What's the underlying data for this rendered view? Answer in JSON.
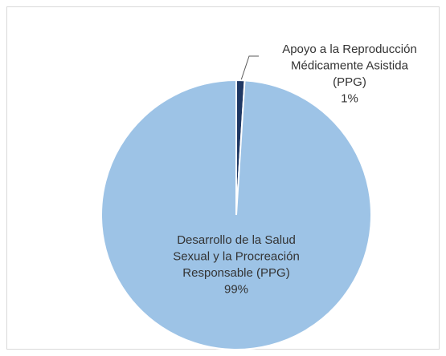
{
  "chart_data": {
    "type": "pie",
    "categories": [
      "Apoyo a la Reproducción Médicamente Asistida (PPG)",
      "Desarrollo de la Salud Sexual y la Procreación Responsable (PPG)"
    ],
    "values": [
      1,
      99
    ],
    "value_labels": [
      "1%",
      "99%"
    ],
    "colors": [
      "#1f3864",
      "#9dc3e6"
    ]
  }
}
